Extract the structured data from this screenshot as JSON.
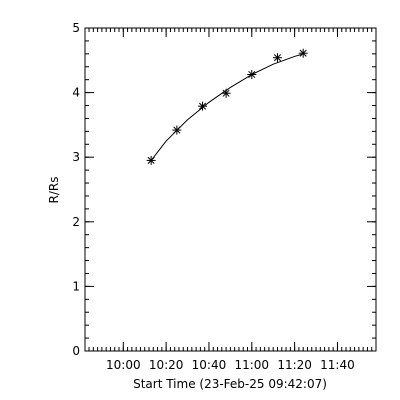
{
  "chart_data": {
    "type": "scatter",
    "xlabel": "Start Time (23-Feb-25 09:42:07)",
    "ylabel": "R/Rs",
    "xlim": [
      "09:42:07",
      "11:58:00"
    ],
    "ylim": [
      0,
      5
    ],
    "x_ticks": [
      "10:00",
      "10:20",
      "10:40",
      "11:00",
      "11:20",
      "11:40"
    ],
    "y_ticks": [
      "0",
      "1",
      "2",
      "3",
      "4",
      "5"
    ],
    "x_minor_step_minutes": 2,
    "y_minor_step": 0.2,
    "grid": false,
    "marker": "asterisk",
    "color": "#000000",
    "series": [
      {
        "x": [
          "10:13",
          "10:25",
          "10:37",
          "10:48",
          "11:00",
          "11:12",
          "11:24"
        ],
        "y": [
          2.95,
          3.42,
          3.79,
          3.99,
          4.28,
          4.54,
          4.61
        ]
      }
    ],
    "fit": {
      "x": [
        "10:13",
        "10:20",
        "10:30",
        "10:40",
        "10:50",
        "11:00",
        "11:10",
        "11:20",
        "11:24"
      ],
      "y": [
        2.95,
        3.25,
        3.58,
        3.85,
        4.08,
        4.28,
        4.44,
        4.56,
        4.6
      ]
    }
  }
}
